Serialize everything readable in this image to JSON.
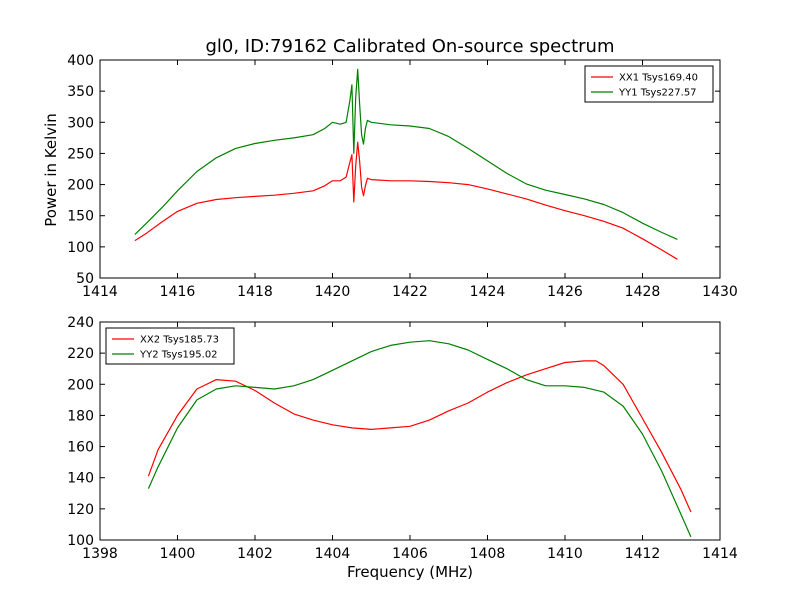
{
  "figure": {
    "title": "gl0, ID:79162 Calibrated On-source spectrum",
    "ylabel": "Power in Kelvin",
    "xlabel": "Frequency (MHz)"
  },
  "chart_data": [
    {
      "type": "line",
      "title": "gl0, ID:79162 Calibrated On-source spectrum",
      "xlabel": "",
      "ylabel": "Power in Kelvin",
      "xlim": [
        1414,
        1430
      ],
      "ylim": [
        50,
        400
      ],
      "xticks": [
        1414,
        1416,
        1418,
        1420,
        1422,
        1424,
        1426,
        1428,
        1430
      ],
      "yticks": [
        50,
        100,
        150,
        200,
        250,
        300,
        350,
        400
      ],
      "legend_position": "top-right",
      "grid": false,
      "series": [
        {
          "name": "XX1 Tsys169.40",
          "color": "#ff0000",
          "x": [
            1414.9,
            1415.2,
            1415.6,
            1416.0,
            1416.5,
            1417.0,
            1417.5,
            1418.0,
            1418.5,
            1419.0,
            1419.5,
            1419.8,
            1420.0,
            1420.2,
            1420.35,
            1420.45,
            1420.5,
            1420.55,
            1420.6,
            1420.65,
            1420.7,
            1420.75,
            1420.8,
            1420.85,
            1420.9,
            1421.0,
            1421.5,
            1422.0,
            1422.5,
            1423.0,
            1423.5,
            1424.0,
            1424.5,
            1425.0,
            1425.5,
            1426.0,
            1426.5,
            1427.0,
            1427.5,
            1428.0,
            1428.5,
            1428.9
          ],
          "y": [
            110,
            122,
            140,
            157,
            170,
            176,
            179,
            181,
            183,
            186,
            190,
            198,
            206,
            206,
            212,
            236,
            248,
            172,
            230,
            268,
            238,
            196,
            182,
            198,
            210,
            208,
            206,
            206,
            205,
            203,
            200,
            193,
            185,
            177,
            167,
            158,
            150,
            141,
            130,
            113,
            95,
            80
          ]
        },
        {
          "name": "YY1 Tsys227.57",
          "color": "#008000",
          "x": [
            1414.9,
            1415.2,
            1415.6,
            1416.0,
            1416.5,
            1417.0,
            1417.5,
            1418.0,
            1418.5,
            1419.0,
            1419.5,
            1419.8,
            1420.0,
            1420.2,
            1420.35,
            1420.45,
            1420.5,
            1420.55,
            1420.6,
            1420.65,
            1420.7,
            1420.75,
            1420.8,
            1420.85,
            1420.9,
            1421.0,
            1421.5,
            1422.0,
            1422.5,
            1423.0,
            1423.5,
            1424.0,
            1424.5,
            1425.0,
            1425.5,
            1426.0,
            1426.5,
            1427.0,
            1427.5,
            1428.0,
            1428.5,
            1428.9
          ],
          "y": [
            120,
            138,
            163,
            190,
            221,
            243,
            258,
            266,
            271,
            275,
            280,
            290,
            300,
            297,
            300,
            335,
            360,
            250,
            340,
            385,
            330,
            280,
            265,
            290,
            303,
            300,
            296,
            294,
            290,
            277,
            258,
            238,
            218,
            201,
            191,
            184,
            177,
            168,
            155,
            138,
            123,
            112
          ]
        }
      ]
    },
    {
      "type": "line",
      "title": "",
      "xlabel": "Frequency (MHz)",
      "ylabel": "",
      "xlim": [
        1398,
        1414
      ],
      "ylim": [
        100,
        240
      ],
      "xticks": [
        1398,
        1400,
        1402,
        1404,
        1406,
        1408,
        1410,
        1412,
        1414
      ],
      "yticks": [
        100,
        120,
        140,
        160,
        180,
        200,
        220,
        240
      ],
      "legend_position": "top-left",
      "grid": false,
      "series": [
        {
          "name": "XX2 Tsys185.73",
          "color": "#ff0000",
          "x": [
            1399.25,
            1399.5,
            1400.0,
            1400.5,
            1401.0,
            1401.5,
            1402.0,
            1402.5,
            1403.0,
            1403.5,
            1404.0,
            1404.5,
            1405.0,
            1405.5,
            1406.0,
            1406.5,
            1407.0,
            1407.5,
            1408.0,
            1408.5,
            1409.0,
            1409.5,
            1410.0,
            1410.5,
            1410.8,
            1411.0,
            1411.5,
            1412.0,
            1412.5,
            1413.0,
            1413.25
          ],
          "y": [
            141,
            158,
            180,
            197,
            203,
            202,
            196,
            188,
            181,
            177,
            174,
            172,
            171,
            172,
            173,
            177,
            183,
            188,
            195,
            201,
            206,
            210,
            214,
            215,
            215,
            212,
            200,
            178,
            156,
            132,
            118
          ]
        },
        {
          "name": "YY2 Tsys195.02",
          "color": "#008000",
          "x": [
            1399.25,
            1399.5,
            1400.0,
            1400.5,
            1401.0,
            1401.5,
            1402.0,
            1402.5,
            1403.0,
            1403.5,
            1404.0,
            1404.5,
            1405.0,
            1405.5,
            1406.0,
            1406.5,
            1407.0,
            1407.5,
            1408.0,
            1408.5,
            1409.0,
            1409.5,
            1410.0,
            1410.5,
            1411.0,
            1411.5,
            1412.0,
            1412.5,
            1413.0,
            1413.25
          ],
          "y": [
            133,
            147,
            172,
            190,
            197,
            199,
            198,
            197,
            199,
            203,
            209,
            215,
            221,
            225,
            227,
            228,
            226,
            222,
            216,
            210,
            203,
            199,
            199,
            198,
            195,
            186,
            168,
            144,
            116,
            102
          ]
        }
      ]
    }
  ]
}
